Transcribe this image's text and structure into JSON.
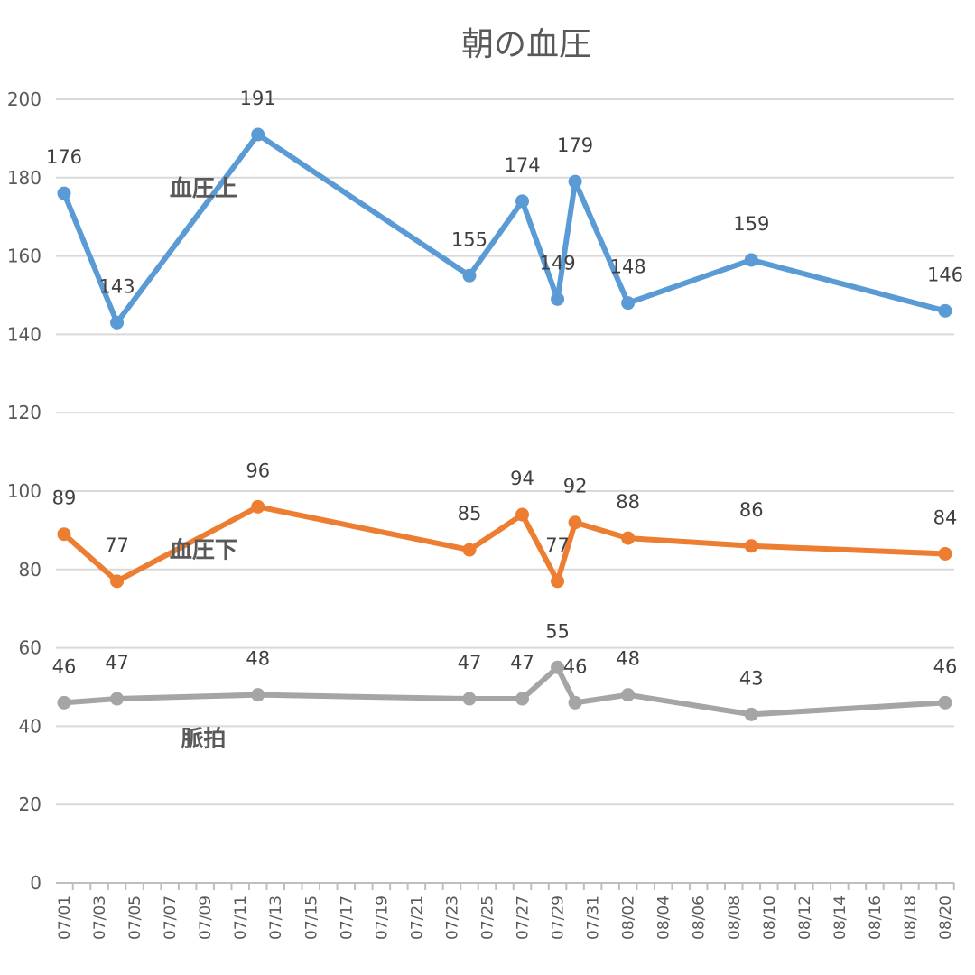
{
  "chart_data": {
    "type": "line",
    "title": "朝の血圧",
    "xlabel": "",
    "ylabel": "",
    "ylim": [
      0,
      200
    ],
    "yticks": [
      0,
      20,
      40,
      60,
      80,
      100,
      120,
      140,
      160,
      180,
      200
    ],
    "xlim": [
      "07/01",
      "08/20"
    ],
    "xticks": [
      "07/01",
      "07/03",
      "07/05",
      "07/07",
      "07/09",
      "07/11",
      "07/13",
      "07/15",
      "07/17",
      "07/19",
      "07/21",
      "07/23",
      "07/25",
      "07/27",
      "07/29",
      "07/31",
      "08/02",
      "08/04",
      "08/06",
      "08/08",
      "08/10",
      "08/12",
      "08/14",
      "08/16",
      "08/18",
      "08/20"
    ],
    "grid": true,
    "legend": "none",
    "series": [
      {
        "name": "血圧上",
        "color": "#5b9bd5",
        "x": [
          "07/01",
          "07/04",
          "07/12",
          "07/24",
          "07/27",
          "07/29",
          "07/30",
          "08/02",
          "08/09",
          "08/20"
        ],
        "values": [
          176,
          143,
          191,
          155,
          174,
          149,
          179,
          148,
          159,
          146
        ]
      },
      {
        "name": "血圧下",
        "color": "#ed7d31",
        "x": [
          "07/01",
          "07/04",
          "07/12",
          "07/24",
          "07/27",
          "07/29",
          "07/30",
          "08/02",
          "08/09",
          "08/20"
        ],
        "values": [
          89,
          77,
          96,
          85,
          94,
          77,
          92,
          88,
          86,
          84
        ]
      },
      {
        "name": "脈拍",
        "color": "#a5a5a5",
        "x": [
          "07/01",
          "07/04",
          "07/12",
          "07/24",
          "07/27",
          "07/29",
          "07/30",
          "08/02",
          "08/09",
          "08/20"
        ],
        "values": [
          46,
          47,
          48,
          47,
          47,
          55,
          46,
          48,
          43,
          46
        ]
      }
    ]
  }
}
